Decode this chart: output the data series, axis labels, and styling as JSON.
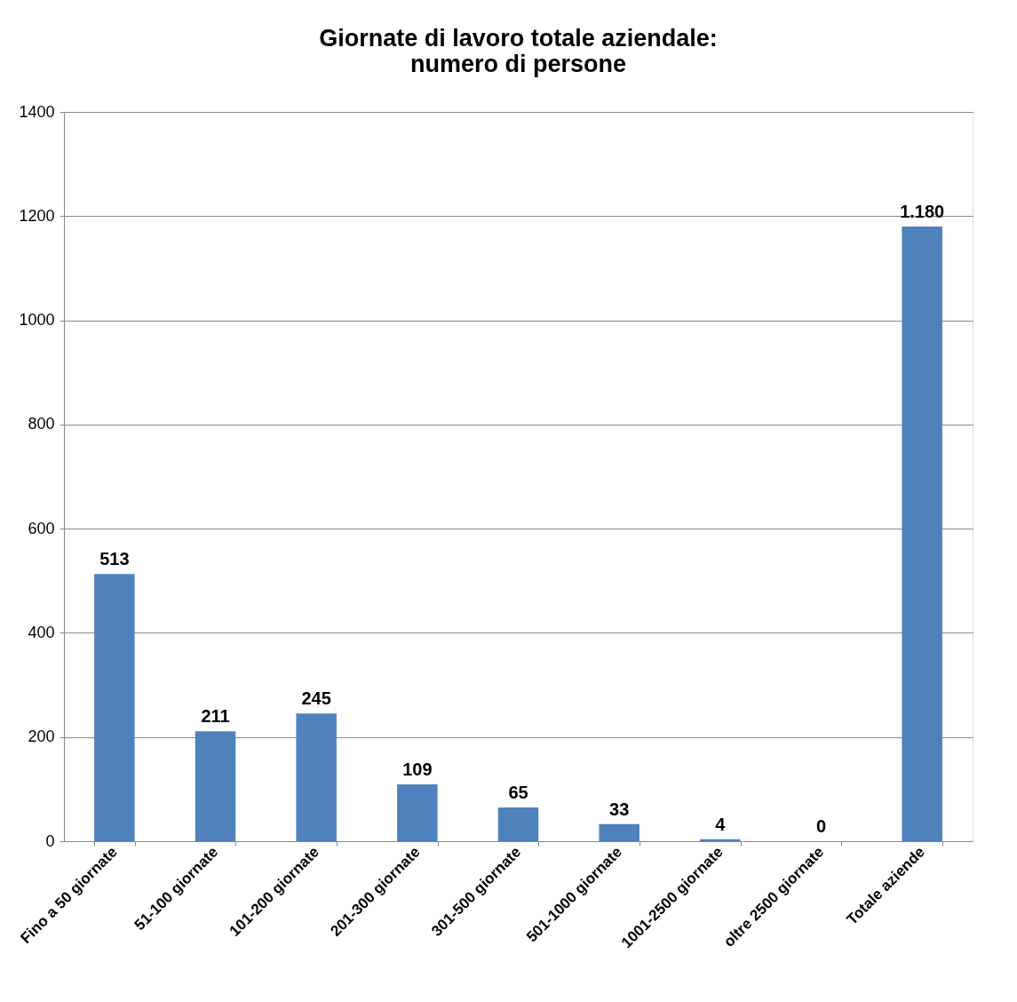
{
  "chart_data": {
    "type": "bar",
    "title": [
      "Giornate di lavoro totale aziendale:",
      "numero di persone"
    ],
    "categories": [
      "Fino a 50 giornate",
      "51-100 giornate",
      "101-200 giornate",
      "201-300 giornate",
      "301-500 giornate",
      "501-1000 giornate",
      "1001-2500 giornate",
      "oltre 2500 giornate",
      "Totale aziende"
    ],
    "values": [
      513,
      211,
      245,
      109,
      65,
      33,
      4,
      0,
      1180
    ],
    "value_labels": [
      "513",
      "211",
      "245",
      "109",
      "65",
      "33",
      "4",
      "0",
      "1.180"
    ],
    "color": "#4f81bd",
    "ylim": [
      0,
      1400
    ],
    "yticks": [
      0,
      200,
      400,
      600,
      800,
      1000,
      1200,
      1400
    ],
    "grid": "y"
  }
}
